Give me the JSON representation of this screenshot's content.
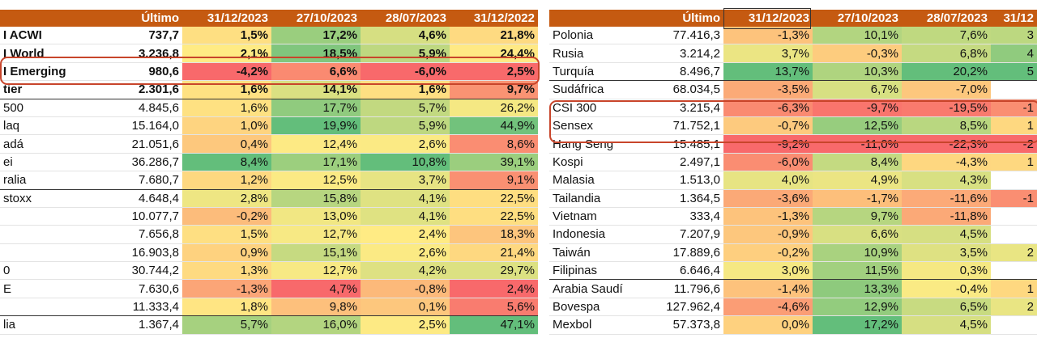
{
  "colors": {
    "header": "#c55a11",
    "red": "#f8696b",
    "orange": "#fba977",
    "yellow": "#ffeb84",
    "lightgreen": "#b1d580",
    "green": "#63be7b",
    "annotation": "#c8452b"
  },
  "left": {
    "headers": [
      "",
      "Último",
      "31/12/2023",
      "27/10/2023",
      "28/07/2023",
      "31/12/2022"
    ],
    "rows": [
      {
        "name": "I ACWI",
        "last": "737,7",
        "v": [
          "1,5%",
          "17,2%",
          "4,6%",
          "21,8%"
        ],
        "bold": true
      },
      {
        "name": "I World",
        "last": "3.236,8",
        "v": [
          "2,1%",
          "18,5%",
          "5,9%",
          "24,4%"
        ],
        "bold": true
      },
      {
        "name": "I Emerging",
        "last": "980,6",
        "v": [
          "-4,2%",
          "6,6%",
          "-6,0%",
          "2,5%"
        ],
        "bold": true
      },
      {
        "name": "tier",
        "last": "2.301,6",
        "v": [
          "1,6%",
          "14,1%",
          "1,6%",
          "9,7%"
        ],
        "bold": true
      },
      {
        "name": "500",
        "last": "4.845,6",
        "v": [
          "1,6%",
          "17,7%",
          "5,7%",
          "26,2%"
        ]
      },
      {
        "name": "laq",
        "last": "15.164,0",
        "v": [
          "1,0%",
          "19,9%",
          "5,9%",
          "44,9%"
        ]
      },
      {
        "name": "adá",
        "last": "21.051,6",
        "v": [
          "0,4%",
          "12,4%",
          "2,6%",
          "8,6%"
        ]
      },
      {
        "name": "ei",
        "last": "36.286,7",
        "v": [
          "8,4%",
          "17,1%",
          "10,8%",
          "39,1%"
        ]
      },
      {
        "name": "ralia",
        "last": "7.680,7",
        "v": [
          "1,2%",
          "12,5%",
          "3,7%",
          "9,1%"
        ]
      },
      {
        "name": "stoxx",
        "last": "4.648,4",
        "v": [
          "2,8%",
          "15,8%",
          "4,1%",
          "22,5%"
        ]
      },
      {
        "name": "",
        "last": "10.077,7",
        "v": [
          "-0,2%",
          "13,0%",
          "4,1%",
          "22,5%"
        ]
      },
      {
        "name": "",
        "last": "7.656,8",
        "v": [
          "1,5%",
          "12,7%",
          "2,4%",
          "18,3%"
        ]
      },
      {
        "name": "",
        "last": "16.903,8",
        "v": [
          "0,9%",
          "15,1%",
          "2,6%",
          "21,4%"
        ]
      },
      {
        "name": "0",
        "last": "30.744,2",
        "v": [
          "1,3%",
          "12,7%",
          "4,2%",
          "29,7%"
        ]
      },
      {
        "name": "E",
        "last": "7.630,6",
        "v": [
          "-1,3%",
          "4,7%",
          "-0,8%",
          "2,4%"
        ]
      },
      {
        "name": "",
        "last": "11.333,4",
        "v": [
          "1,8%",
          "9,8%",
          "0,1%",
          "5,6%"
        ]
      },
      {
        "name": "lia",
        "last": "1.367,4",
        "v": [
          "5,7%",
          "16,0%",
          "2,5%",
          "47,1%"
        ]
      }
    ]
  },
  "right": {
    "headers": [
      "",
      "Último",
      "31/12/2023",
      "27/10/2023",
      "28/07/2023",
      "31/12"
    ],
    "rows": [
      {
        "name": "Polonia",
        "last": "77.416,3",
        "v": [
          "-1,3%",
          "10,1%",
          "7,6%",
          "3"
        ]
      },
      {
        "name": "Rusia",
        "last": "3.214,2",
        "v": [
          "3,7%",
          "-0,3%",
          "6,8%",
          "4"
        ]
      },
      {
        "name": "Turquía",
        "last": "8.496,7",
        "v": [
          "13,7%",
          "10,3%",
          "20,2%",
          "5"
        ]
      },
      {
        "name": "Sudáfrica",
        "last": "68.034,5",
        "v": [
          "-3,5%",
          "6,7%",
          "-7,0%",
          ""
        ]
      },
      {
        "name": "CSI 300",
        "last": "3.215,4",
        "v": [
          "-6,3%",
          "-9,7%",
          "-19,5%",
          "-1"
        ]
      },
      {
        "name": "Sensex",
        "last": "71.752,1",
        "v": [
          "-0,7%",
          "12,5%",
          "8,5%",
          "1"
        ]
      },
      {
        "name": "Hang Seng",
        "last": "15.485,1",
        "v": [
          "-9,2%",
          "-11,0%",
          "-22,3%",
          "-2"
        ]
      },
      {
        "name": "Kospi",
        "last": "2.497,1",
        "v": [
          "-6,0%",
          "8,4%",
          "-4,3%",
          "1"
        ]
      },
      {
        "name": "Malasia",
        "last": "1.513,0",
        "v": [
          "4,0%",
          "4,9%",
          "4,3%",
          ""
        ]
      },
      {
        "name": "Tailandia",
        "last": "1.364,5",
        "v": [
          "-3,6%",
          "-1,7%",
          "-11,6%",
          "-1"
        ]
      },
      {
        "name": "Vietnam",
        "last": "333,4",
        "v": [
          "-1,3%",
          "9,7%",
          "-11,8%",
          ""
        ]
      },
      {
        "name": "Indonesia",
        "last": "7.207,9",
        "v": [
          "-0,9%",
          "6,6%",
          "4,5%",
          ""
        ]
      },
      {
        "name": "Taiwán",
        "last": "17.889,6",
        "v": [
          "-0,2%",
          "10,9%",
          "3,5%",
          "2"
        ]
      },
      {
        "name": "Filipinas",
        "last": "6.646,4",
        "v": [
          "3,0%",
          "11,5%",
          "0,3%",
          ""
        ]
      },
      {
        "name": "Arabia Saudí",
        "last": "11.796,6",
        "v": [
          "-1,4%",
          "13,3%",
          "-0,4%",
          "1"
        ]
      },
      {
        "name": "Bovespa",
        "last": "127.962,4",
        "v": [
          "-4,6%",
          "12,9%",
          "6,5%",
          "2"
        ]
      },
      {
        "name": "Mexbol",
        "last": "57.373,8",
        "v": [
          "0,0%",
          "17,2%",
          "4,5%",
          ""
        ]
      }
    ]
  }
}
